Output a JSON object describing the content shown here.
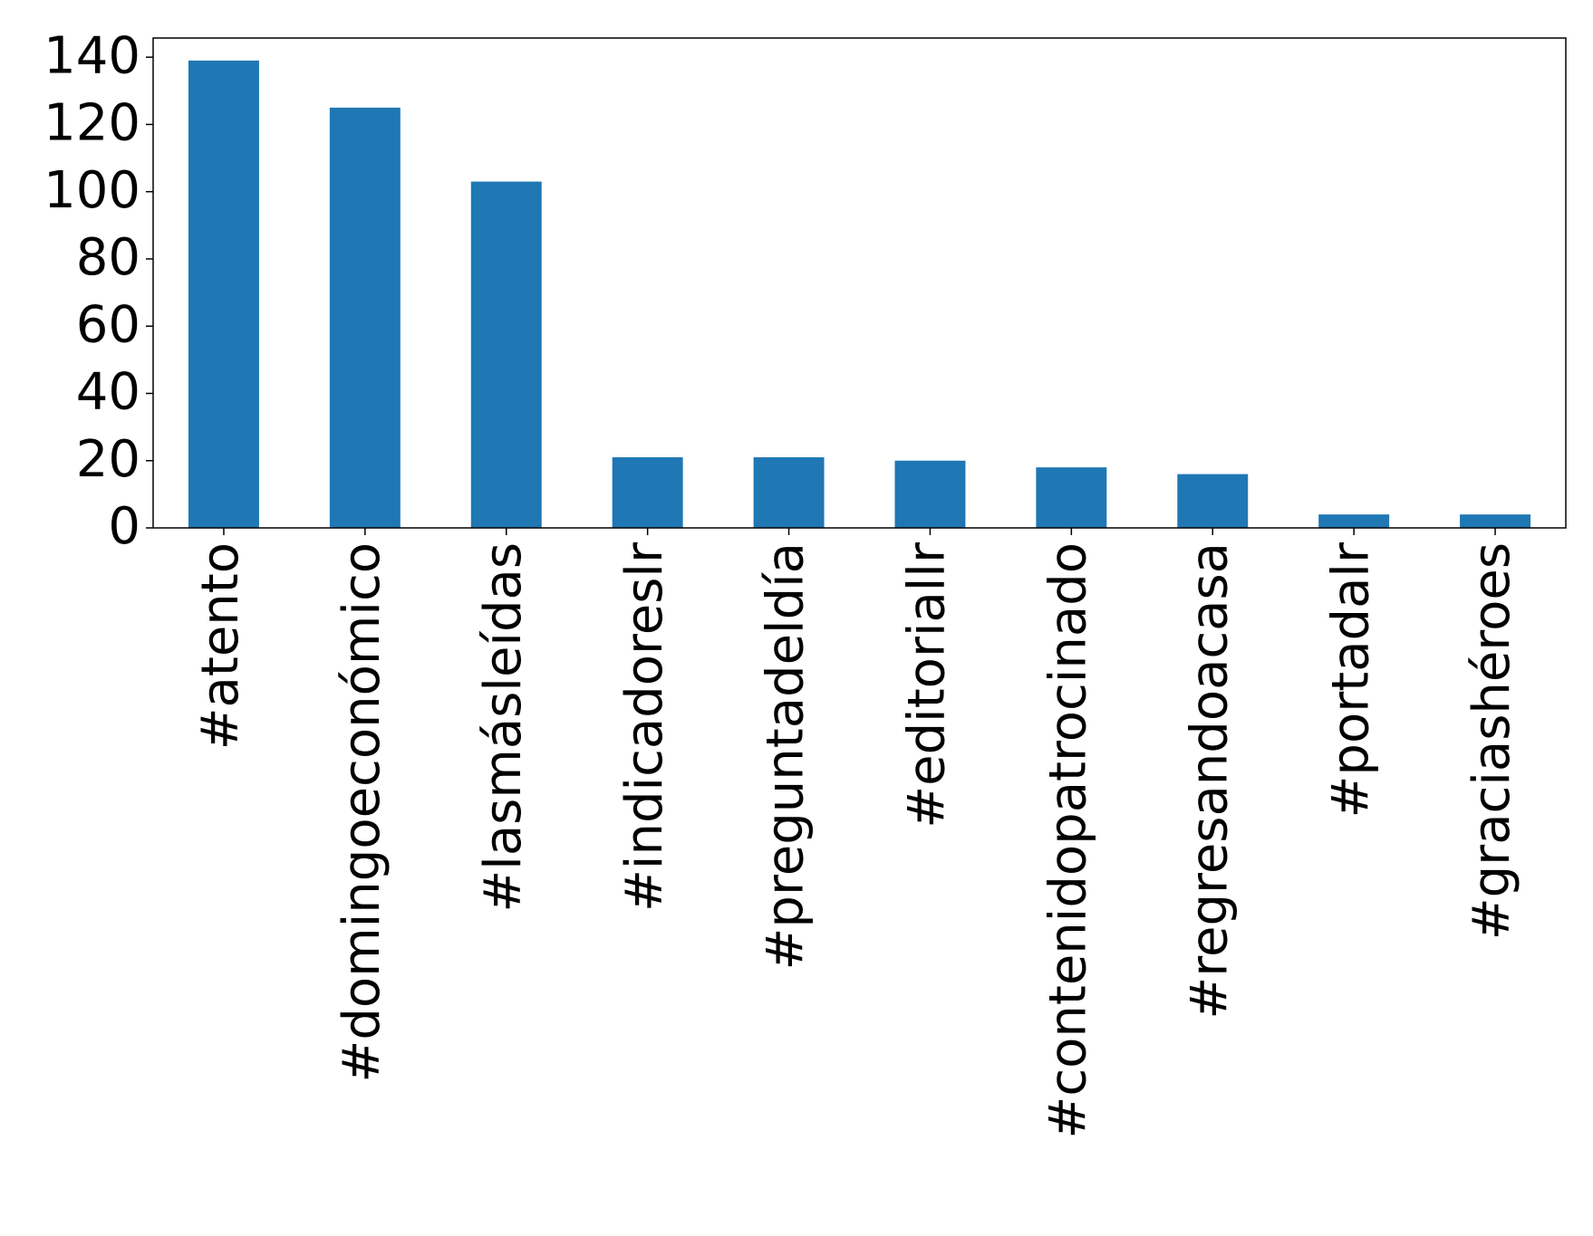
{
  "chart_data": {
    "type": "bar",
    "categories": [
      "#atento",
      "#domingoeconómico",
      "#lasmásleídas",
      "#indicadoreslr",
      "#preguntadeldía",
      "#editoriallr",
      "#contenidopatrocinado",
      "#regresandoacasa",
      "#portadalr",
      "#graciashéroes"
    ],
    "values": [
      139,
      125,
      103,
      21,
      21,
      20,
      18,
      16,
      4,
      4
    ],
    "color": "#1f77b4",
    "ylim": [
      0,
      145.7
    ],
    "yticks": [
      0,
      20,
      40,
      60,
      80,
      100,
      120,
      140
    ],
    "grid": false
  }
}
